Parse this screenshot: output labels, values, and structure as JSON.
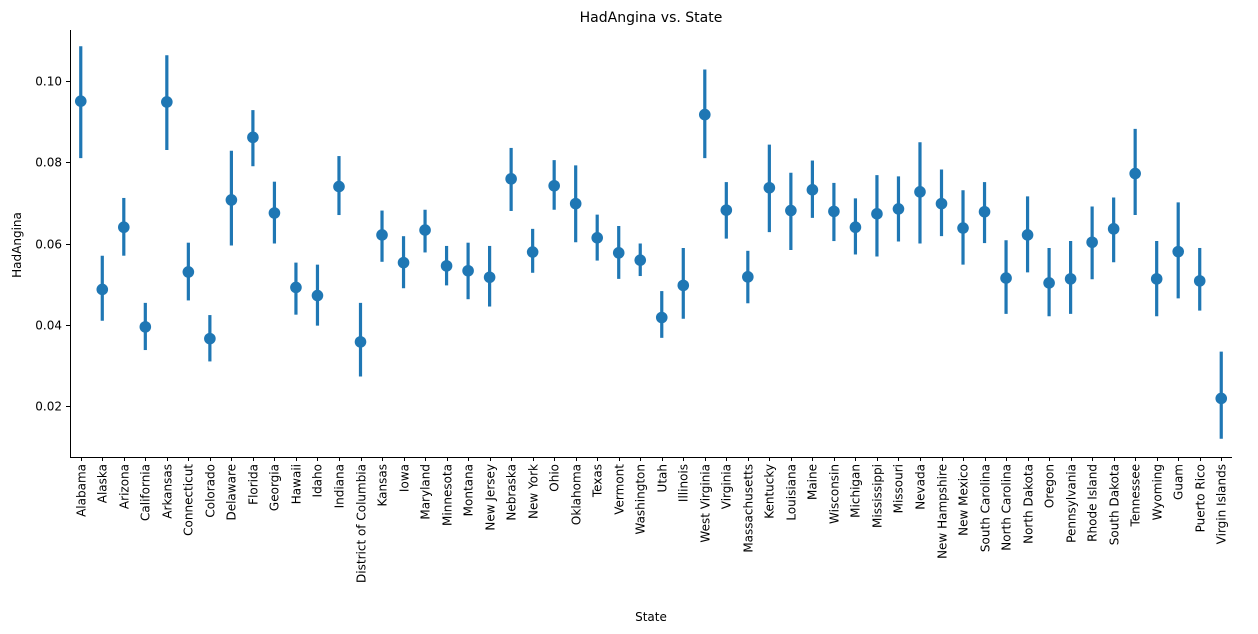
{
  "chart_data": {
    "type": "pointplot",
    "title": "HadAngina vs. State",
    "xlabel": "State",
    "ylabel": "HadAngina",
    "ylim": [
      0.0075,
      0.1125
    ],
    "yticks": [
      0.02,
      0.04,
      0.06,
      0.08,
      0.1
    ],
    "ytick_labels": [
      "0.02",
      "0.04",
      "0.06",
      "0.08",
      "0.10"
    ],
    "grid": false,
    "color": "#1f77b4",
    "categories": [
      "Alabama",
      "Alaska",
      "Arizona",
      "California",
      "Arkansas",
      "Connecticut",
      "Colorado",
      "Delaware",
      "Florida",
      "Georgia",
      "Hawaii",
      "Idaho",
      "Indiana",
      "District of Columbia",
      "Kansas",
      "Iowa",
      "Maryland",
      "Minnesota",
      "Montana",
      "New Jersey",
      "Nebraska",
      "New York",
      "Ohio",
      "Oklahoma",
      "Texas",
      "Vermont",
      "Washington",
      "Utah",
      "Illinois",
      "West Virginia",
      "Virginia",
      "Massachusetts",
      "Kentucky",
      "Louisiana",
      "Maine",
      "Wisconsin",
      "Michigan",
      "Mississippi",
      "Missouri",
      "Nevada",
      "New Hampshire",
      "New Mexico",
      "South Carolina",
      "North Carolina",
      "North Dakota",
      "Oregon",
      "Pennsylvania",
      "Rhode Island",
      "South Dakota",
      "Tennessee",
      "Wyoming",
      "Guam",
      "Puerto Rico",
      "Virgin Islands"
    ],
    "values": [
      0.095,
      0.0487,
      0.064,
      0.0395,
      0.0948,
      0.053,
      0.0366,
      0.0707,
      0.0861,
      0.0675,
      0.0492,
      0.0472,
      0.074,
      0.0358,
      0.0621,
      0.0553,
      0.0633,
      0.0545,
      0.0533,
      0.0517,
      0.0759,
      0.0579,
      0.0742,
      0.0698,
      0.0614,
      0.0577,
      0.0559,
      0.0418,
      0.0497,
      0.0917,
      0.0682,
      0.0518,
      0.0737,
      0.0681,
      0.0732,
      0.0679,
      0.064,
      0.0673,
      0.0685,
      0.0727,
      0.0698,
      0.0638,
      0.0678,
      0.0515,
      0.0621,
      0.0503,
      0.0513,
      0.0603,
      0.0636,
      0.0772,
      0.0513,
      0.058,
      0.0508,
      0.0219
    ],
    "ci_low": [
      0.081,
      0.041,
      0.057,
      0.0338,
      0.083,
      0.046,
      0.031,
      0.0595,
      0.079,
      0.06,
      0.0425,
      0.0398,
      0.067,
      0.0273,
      0.0555,
      0.049,
      0.0578,
      0.0497,
      0.0463,
      0.0445,
      0.068,
      0.0528,
      0.0683,
      0.0603,
      0.0558,
      0.0513,
      0.052,
      0.0368,
      0.0415,
      0.081,
      0.0612,
      0.0453,
      0.0628,
      0.0584,
      0.0663,
      0.0606,
      0.0573,
      0.0568,
      0.0605,
      0.06,
      0.0618,
      0.0548,
      0.0601,
      0.0427,
      0.0529,
      0.0421,
      0.0427,
      0.0512,
      0.0554,
      0.067,
      0.0421,
      0.0465,
      0.0435,
      0.012
    ],
    "ci_high": [
      0.1085,
      0.057,
      0.0712,
      0.0454,
      0.1063,
      0.0602,
      0.0424,
      0.0828,
      0.0928,
      0.0752,
      0.0553,
      0.0548,
      0.0815,
      0.0454,
      0.0681,
      0.0618,
      0.0683,
      0.0594,
      0.0602,
      0.0594,
      0.0835,
      0.0636,
      0.0805,
      0.0792,
      0.0671,
      0.0643,
      0.06,
      0.0483,
      0.0589,
      0.1028,
      0.0751,
      0.0582,
      0.0843,
      0.0774,
      0.0804,
      0.0749,
      0.0711,
      0.0768,
      0.0765,
      0.0849,
      0.0782,
      0.0731,
      0.0751,
      0.0608,
      0.0716,
      0.0589,
      0.0606,
      0.0691,
      0.0713,
      0.0882,
      0.0606,
      0.0701,
      0.0589,
      0.0334
    ]
  }
}
